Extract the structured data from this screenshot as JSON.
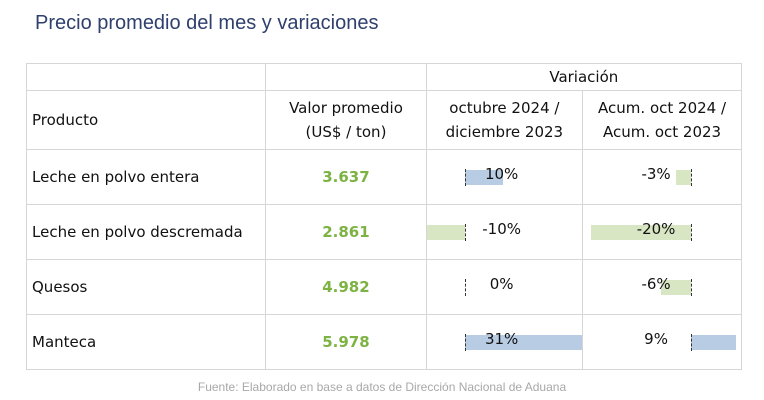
{
  "title": "Precio promedio del mes y variaciones",
  "table": {
    "group_header": "Variación",
    "headers": {
      "product": "Producto",
      "value_line1": "Valor promedio",
      "value_line2": "(US$ / ton)",
      "var1_line1": "octubre 2024 /",
      "var1_line2": "diciembre 2023",
      "var2_line1": "Acum. oct 2024 /",
      "var2_line2": "Acum. oct 2023"
    },
    "rows": [
      {
        "product": "Leche en polvo entera",
        "value": "3.637",
        "var1": "10%",
        "var1_num": 10,
        "var2": "-3%",
        "var2_num": -3
      },
      {
        "product": "Leche en polvo descremada",
        "value": "2.861",
        "var1": "-10%",
        "var1_num": -10,
        "var2": "-20%",
        "var2_num": -20
      },
      {
        "product": "Quesos",
        "value": "4.982",
        "var1": "0%",
        "var1_num": 0,
        "var2": "-6%",
        "var2_num": -6
      },
      {
        "product": "Manteca",
        "value": "5.978",
        "var1": "31%",
        "var1_num": 31,
        "var2": "9%",
        "var2_num": 9
      }
    ]
  },
  "colors": {
    "positive_bar": "#b8cce4",
    "negative_bar": "#d8e6c4",
    "value_text": "#7cb342",
    "title_text": "#2f3f6e"
  },
  "source": "Fuente: Elaborado en base a datos de Dirección Nacional de Aduana"
}
